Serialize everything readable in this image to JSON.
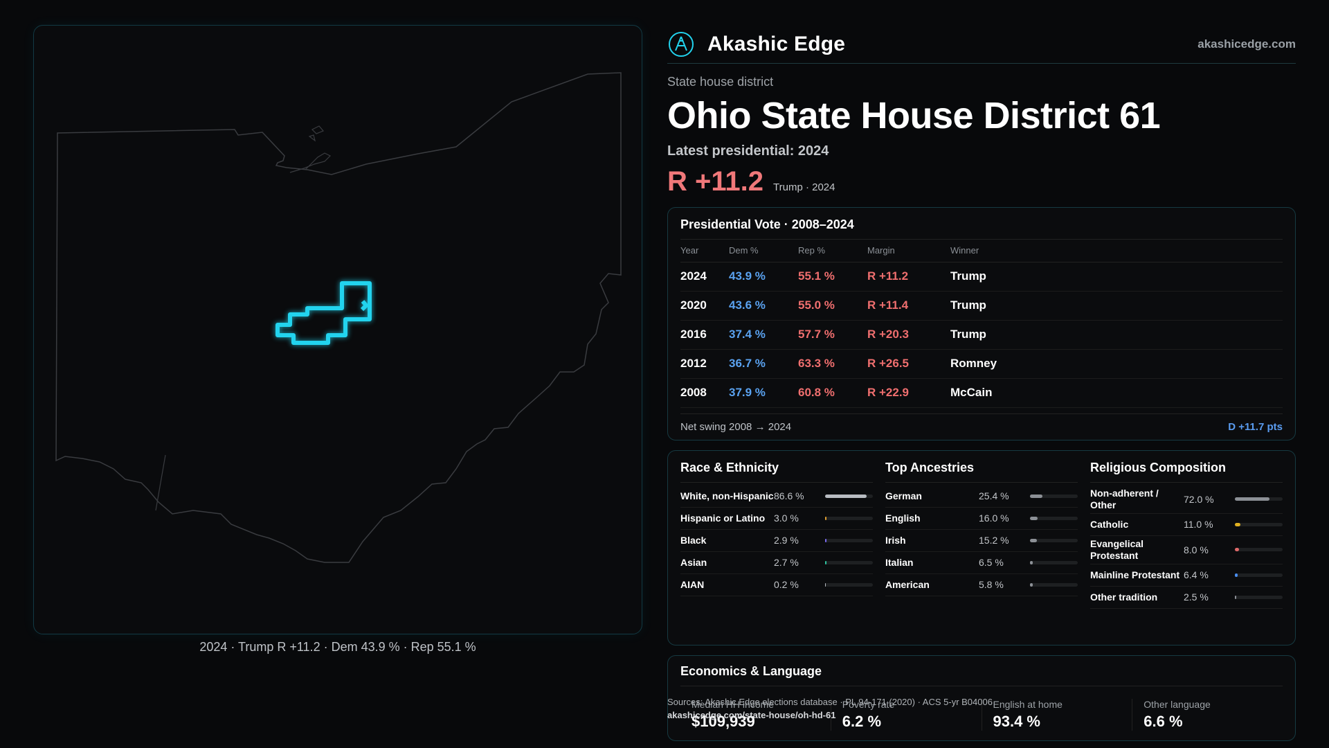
{
  "map": {
    "caption": "2024 · Trump R +11.2 · Dem 43.9 % · Rep 55.1 %",
    "colors": {
      "outline": "#3a3c40",
      "district": "#22d3ee"
    }
  },
  "brand": {
    "name": "Akashic Edge",
    "url": "akashicedge.com",
    "logo_icon": "akashic-edge-logo-icon"
  },
  "header": {
    "kicker": "State house district",
    "title": "Ohio State House District 61",
    "latest": "Latest presidential: 2024",
    "margin": "R +11.2",
    "margin_note": "Trump · 2024"
  },
  "presidential": {
    "title": "Presidential Vote · 2008–2024",
    "columns": [
      "Year",
      "Dem %",
      "Rep %",
      "Margin",
      "Winner"
    ],
    "rows": [
      {
        "year": "2024",
        "dem": "43.9 %",
        "rep": "55.1 %",
        "margin": "R +11.2",
        "winner": "Trump"
      },
      {
        "year": "2020",
        "dem": "43.6 %",
        "rep": "55.0 %",
        "margin": "R +11.4",
        "winner": "Trump"
      },
      {
        "year": "2016",
        "dem": "37.4 %",
        "rep": "57.7 %",
        "margin": "R +20.3",
        "winner": "Trump"
      },
      {
        "year": "2012",
        "dem": "36.7 %",
        "rep": "63.3 %",
        "margin": "R +26.5",
        "winner": "Romney"
      },
      {
        "year": "2008",
        "dem": "37.9 %",
        "rep": "60.8 %",
        "margin": "R +22.9",
        "winner": "McCain"
      }
    ],
    "swing_label": "Net swing 2008 → 2024",
    "swing_value": "D +11.7 pts"
  },
  "race": {
    "title": "Race & Ethnicity",
    "items": [
      {
        "label": "White, non-Hispanic",
        "pct": "86.6 %",
        "value": 86.6,
        "color": "#b8bcc2"
      },
      {
        "label": "Hispanic or Latino",
        "pct": "3.0 %",
        "value": 3.0,
        "color": "#e0a030"
      },
      {
        "label": "Black",
        "pct": "2.9 %",
        "value": 2.9,
        "color": "#7a6cf0"
      },
      {
        "label": "Asian",
        "pct": "2.7 %",
        "value": 2.7,
        "color": "#2ec4a0"
      },
      {
        "label": "AIAN",
        "pct": "0.2 %",
        "value": 0.2,
        "color": "#b8bcc2"
      }
    ]
  },
  "ancestry": {
    "title": "Top Ancestries",
    "items": [
      {
        "label": "German",
        "pct": "25.4 %",
        "value": 25.4,
        "color": "#8c9096"
      },
      {
        "label": "English",
        "pct": "16.0 %",
        "value": 16.0,
        "color": "#8c9096"
      },
      {
        "label": "Irish",
        "pct": "15.2 %",
        "value": 15.2,
        "color": "#8c9096"
      },
      {
        "label": "Italian",
        "pct": "6.5 %",
        "value": 6.5,
        "color": "#8c9096"
      },
      {
        "label": "American",
        "pct": "5.8 %",
        "value": 5.8,
        "color": "#8c9096"
      }
    ]
  },
  "religion": {
    "title": "Religious Composition",
    "items": [
      {
        "label": "Non-adherent / Other",
        "pct": "72.0 %",
        "value": 72.0,
        "color": "#8c9096"
      },
      {
        "label": "Catholic",
        "pct": "11.0 %",
        "value": 11.0,
        "color": "#e0b020"
      },
      {
        "label": "Evangelical Protestant",
        "pct": "8.0 %",
        "value": 8.0,
        "color": "#e06a6a"
      },
      {
        "label": "Mainline Protestant",
        "pct": "6.4 %",
        "value": 6.4,
        "color": "#4a8ef0"
      },
      {
        "label": "Other tradition",
        "pct": "2.5 %",
        "value": 2.5,
        "color": "#8c9096"
      }
    ]
  },
  "economics": {
    "title": "Economics & Language",
    "stats": [
      {
        "label": "Median HH income",
        "value": "$109,939"
      },
      {
        "label": "Poverty rate",
        "value": "6.2 %"
      },
      {
        "label": "English at home",
        "value": "93.4 %"
      },
      {
        "label": "Other language",
        "value": "6.6 %"
      }
    ]
  },
  "sources": {
    "text": "Sources: Akashic Edge elections database · PL 94-171 (2020) · ACS 5-yr B04006",
    "url": "akashicedge.com/state-house/oh-hd-61"
  }
}
